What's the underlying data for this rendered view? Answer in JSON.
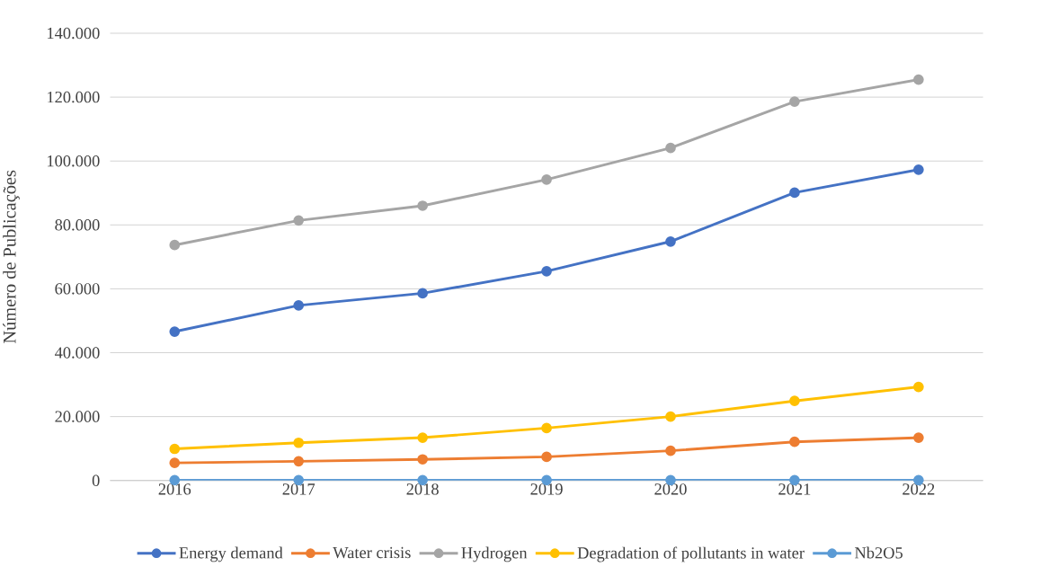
{
  "chart_data": {
    "type": "line",
    "ylabel": "Número de Publicações",
    "categories": [
      "2016",
      "2017",
      "2018",
      "2019",
      "2020",
      "2021",
      "2022"
    ],
    "series": [
      {
        "name": "Energy demand",
        "color": "#4472c4",
        "values": [
          46600,
          54800,
          58600,
          65500,
          74800,
          90100,
          97300
        ]
      },
      {
        "name": "Water crisis",
        "color": "#ed7d31",
        "values": [
          5500,
          6000,
          6600,
          7400,
          9300,
          12100,
          13400
        ]
      },
      {
        "name": "Hydrogen",
        "color": "#a5a5a5",
        "values": [
          73700,
          81400,
          86000,
          94200,
          104100,
          118600,
          125500
        ]
      },
      {
        "name": "Degradation of pollutants in water",
        "color": "#ffc000",
        "values": [
          9900,
          11800,
          13400,
          16400,
          20000,
          24900,
          29300
        ]
      },
      {
        "name": "Nb2O5",
        "color": "#5b9bd5",
        "values": [
          100,
          100,
          100,
          100,
          100,
          100,
          100
        ]
      }
    ],
    "ylim": [
      0,
      140000
    ],
    "yticks": [
      {
        "value": 0,
        "label": "0"
      },
      {
        "value": 20000,
        "label": "20.000"
      },
      {
        "value": 40000,
        "label": "40.000"
      },
      {
        "value": 60000,
        "label": "60.000"
      },
      {
        "value": 80000,
        "label": "80.000"
      },
      {
        "value": 100000,
        "label": "100.000"
      },
      {
        "value": 120000,
        "label": "120.000"
      },
      {
        "value": 140000,
        "label": "140.000"
      }
    ],
    "grid": "y",
    "legend": "bottom",
    "marker": "circle",
    "line_style": "solid"
  }
}
